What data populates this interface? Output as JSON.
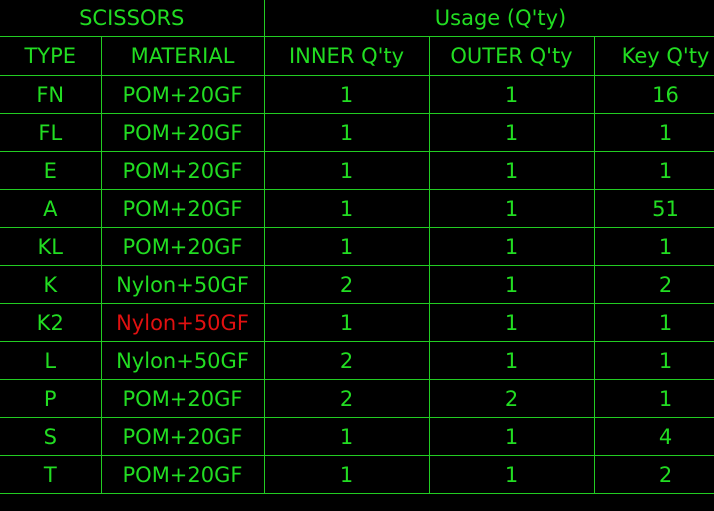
{
  "header": {
    "group_left": "SCISSORS",
    "group_right": "Usage (Q'ty)",
    "columns": [
      "TYPE",
      "MATERIAL",
      "INNER Q'ty",
      "OUTER Q'ty",
      "Key Q'ty"
    ]
  },
  "colors": {
    "text": "#22dd22",
    "grid": "#22cc22",
    "highlight": "#e01010",
    "background": "#000000"
  },
  "rows": [
    {
      "type": "FN",
      "material": "POM+20GF",
      "inner": "1",
      "outer": "1",
      "key": "16"
    },
    {
      "type": "FL",
      "material": "POM+20GF",
      "inner": "1",
      "outer": "1",
      "key": "1"
    },
    {
      "type": "E",
      "material": "POM+20GF",
      "inner": "1",
      "outer": "1",
      "key": "1"
    },
    {
      "type": "A",
      "material": "POM+20GF",
      "inner": "1",
      "outer": "1",
      "key": "51"
    },
    {
      "type": "KL",
      "material": "POM+20GF",
      "inner": "1",
      "outer": "1",
      "key": "1"
    },
    {
      "type": "K",
      "material": "Nylon+50GF",
      "inner": "2",
      "outer": "1",
      "key": "2"
    },
    {
      "type": "K2",
      "material": "Nylon+50GF",
      "inner": "1",
      "outer": "1",
      "key": "1",
      "material_highlight": true
    },
    {
      "type": "L",
      "material": "Nylon+50GF",
      "inner": "2",
      "outer": "1",
      "key": "1"
    },
    {
      "type": "P",
      "material": "POM+20GF",
      "inner": "2",
      "outer": "2",
      "key": "1"
    },
    {
      "type": "S",
      "material": "POM+20GF",
      "inner": "1",
      "outer": "1",
      "key": "4"
    },
    {
      "type": "T",
      "material": "POM+20GF",
      "inner": "1",
      "outer": "1",
      "key": "2"
    }
  ]
}
